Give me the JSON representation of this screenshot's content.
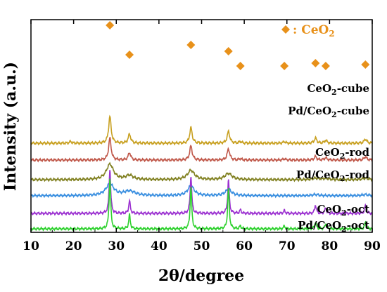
{
  "chart_data": {
    "type": "line",
    "title": "",
    "xlabel": "2θ/degree",
    "ylabel": "Intensity (a.u.)",
    "xlim": [
      10,
      90
    ],
    "xticks": [
      10,
      20,
      30,
      40,
      50,
      60,
      70,
      80,
      90
    ],
    "y_ticks_shown": false,
    "grid": false,
    "legend": {
      "marker": "diamond",
      "text": ": CeO",
      "subscript": "2",
      "color": "#e8911a",
      "placement": "top-right"
    },
    "peak_markers": [
      28.5,
      33.1,
      47.5,
      56.3,
      59.1,
      69.4,
      76.7,
      79.1,
      88.4
    ],
    "series": [
      {
        "label": "CeO",
        "sub": "2",
        "suffix": "-cube",
        "color": "#c8a020",
        "baseline": 3.05,
        "peaks": [
          [
            28.5,
            0.95,
            0.35
          ],
          [
            33.1,
            0.32,
            0.35
          ],
          [
            47.5,
            0.55,
            0.35
          ],
          [
            56.3,
            0.42,
            0.35
          ],
          [
            59.1,
            0.06,
            0.3
          ],
          [
            69.4,
            0.06,
            0.3
          ],
          [
            76.7,
            0.18,
            0.35
          ],
          [
            79.1,
            0.1,
            0.35
          ],
          [
            88.4,
            0.15,
            0.35
          ],
          [
            19.3,
            0.06,
            0.3
          ]
        ]
      },
      {
        "label": "Pd/CeO",
        "sub": "2",
        "suffix": "-cube",
        "color": "#c0584a",
        "baseline": 2.45,
        "peaks": [
          [
            28.5,
            0.78,
            0.35
          ],
          [
            33.1,
            0.26,
            0.35
          ],
          [
            47.5,
            0.5,
            0.35
          ],
          [
            56.3,
            0.4,
            0.35
          ],
          [
            59.1,
            0.05,
            0.3
          ],
          [
            69.4,
            0.05,
            0.3
          ],
          [
            76.7,
            0.12,
            0.35
          ],
          [
            79.1,
            0.08,
            0.35
          ],
          [
            88.4,
            0.12,
            0.35
          ]
        ]
      },
      {
        "label": "CeO",
        "sub": "2",
        "suffix": "-rod",
        "color": "#808020",
        "baseline": 1.75,
        "peaks": [
          [
            28.5,
            0.55,
            1.0
          ],
          [
            33.1,
            0.15,
            1.0
          ],
          [
            47.5,
            0.33,
            1.0
          ],
          [
            56.3,
            0.22,
            1.0
          ],
          [
            76.7,
            0.05,
            0.9
          ],
          [
            79.1,
            0.04,
            0.9
          ],
          [
            88.4,
            0.05,
            0.9
          ]
        ]
      },
      {
        "label": "Pd/CeO",
        "sub": "2",
        "suffix": "-rod",
        "color": "#3a8fe0",
        "baseline": 1.18,
        "peaks": [
          [
            28.5,
            0.42,
            1.1
          ],
          [
            33.1,
            0.16,
            1.6
          ],
          [
            47.5,
            0.35,
            0.9
          ],
          [
            56.3,
            0.22,
            0.9
          ],
          [
            76.7,
            0.04,
            0.9
          ],
          [
            88.4,
            0.04,
            0.9
          ]
        ]
      },
      {
        "label": "CeO",
        "sub": "2",
        "suffix": "-oct",
        "color": "#9b30d0",
        "baseline": 0.55,
        "peaks": [
          [
            28.5,
            1.6,
            0.22
          ],
          [
            33.1,
            0.45,
            0.22
          ],
          [
            47.5,
            1.35,
            0.22
          ],
          [
            56.3,
            1.2,
            0.22
          ],
          [
            59.1,
            0.12,
            0.22
          ],
          [
            69.4,
            0.1,
            0.22
          ],
          [
            76.7,
            0.3,
            0.22
          ],
          [
            79.1,
            0.2,
            0.22
          ],
          [
            88.4,
            0.28,
            0.22
          ]
        ]
      },
      {
        "label": "Pd/CeO",
        "sub": "2",
        "suffix": "-oct",
        "color": "#2ed12e",
        "baseline": 0.0,
        "peaks": [
          [
            28.5,
            1.8,
            0.22
          ],
          [
            33.1,
            0.5,
            0.22
          ],
          [
            47.5,
            1.5,
            0.22
          ],
          [
            56.3,
            1.45,
            0.22
          ],
          [
            59.1,
            0.1,
            0.22
          ],
          [
            69.4,
            0.1,
            0.22
          ],
          [
            76.7,
            0.25,
            0.22
          ],
          [
            79.1,
            0.18,
            0.22
          ],
          [
            88.4,
            0.22,
            0.22
          ]
        ]
      }
    ]
  }
}
